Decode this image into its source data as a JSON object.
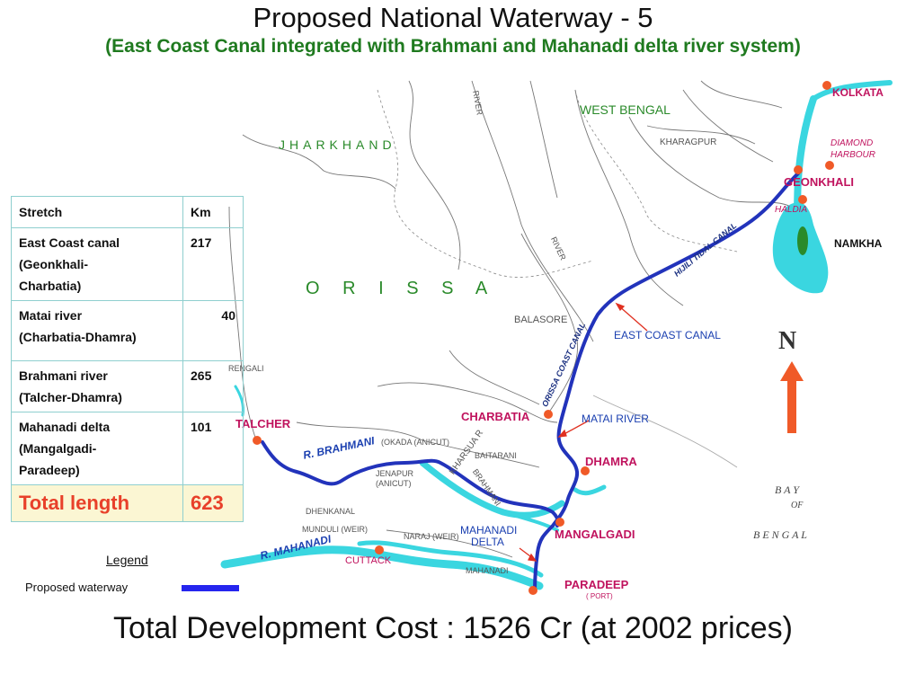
{
  "title": "Proposed National Waterway - 5",
  "subtitle": "(East Coast Canal integrated with Brahmani and Mahanadi delta river system)",
  "footer": "Total Development Cost : 1526 Cr (at 2002 prices)",
  "map": {
    "states": [
      "JHARKHAND",
      "WEST BENGAL",
      "O R I S S A"
    ],
    "cities": [
      "KOLKATA",
      "DIAMOND",
      "HARBOUR",
      "GEONKHALI",
      "HALDIA",
      "NAMKHA",
      "KHARAGPUR",
      "BALASORE",
      "CHARBATIA",
      "DHAMRA",
      "TALCHER",
      "MANGALGADI",
      "PARADEEP",
      "( PORT)",
      "CUTTACK",
      "RENGALI"
    ],
    "waterway_labels": [
      "EAST COAST CANAL",
      "MATAI RIVER",
      "MAHANADI",
      "DELTA",
      "R. BRAHMANI",
      "R. MAHANADI",
      "HIJILI TIDAL CANAL",
      "ORISSA COAST CANAL",
      "BRAHMANI",
      "KHARSUA R",
      "MAHANADI"
    ],
    "minor_labels": [
      "(OKADA (ANICUT)",
      "BAITARANI",
      "JENAPUR",
      "(ANICUT)",
      "DHENKANAL",
      "MUNDULI (WEIR)",
      "NARAJ (WEIR)",
      "RIVER",
      "RIVER"
    ],
    "sea": [
      "B A Y",
      "OF",
      "B E N G A L"
    ],
    "north": "N"
  },
  "table": {
    "headers": [
      "Stretch",
      "Km"
    ],
    "rows": [
      {
        "lines": [
          "East Coast canal",
          "(Geonkhali-",
          "Charbatia)"
        ],
        "km": "217"
      },
      {
        "lines": [
          "Matai river",
          "(Charbatia-Dhamra)"
        ],
        "km": "40"
      },
      {
        "lines": [
          "Brahmani river",
          "(Talcher-Dhamra)"
        ],
        "km": "265"
      },
      {
        "lines": [
          "Mahanadi delta",
          "(Mangalgadi-",
          "Paradeep)"
        ],
        "km": "101"
      }
    ],
    "total_label": "Total length",
    "total_km": "623"
  },
  "legend": {
    "title": "Legend",
    "item": "Proposed waterway",
    "color": "#2525ee"
  },
  "colors": {
    "waterway": "#2233bb",
    "river": "#3ad6e0",
    "city_marker": "#f05a28",
    "title_green": "#1f7a1f",
    "city_label": "#c0135e"
  }
}
